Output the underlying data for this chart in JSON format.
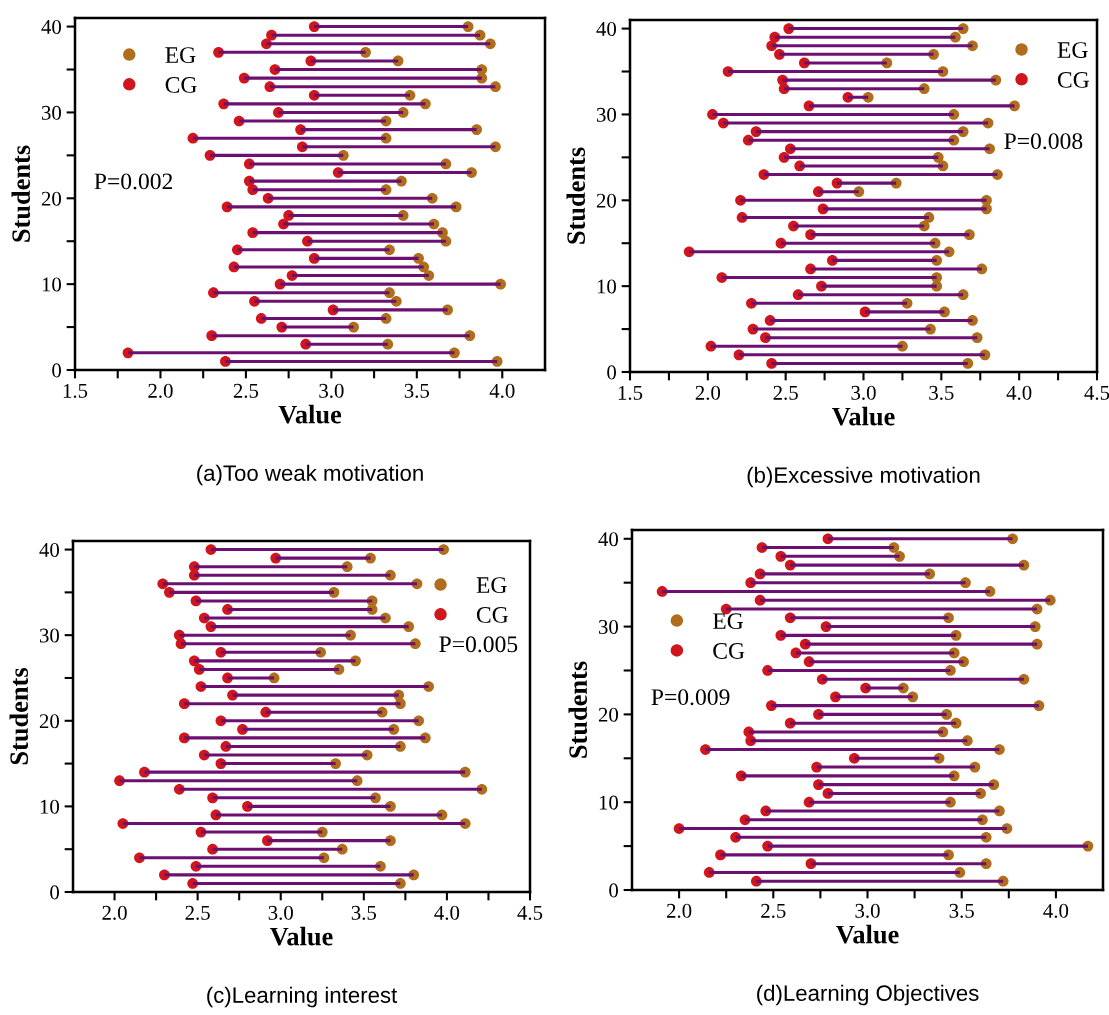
{
  "chart_data": [
    {
      "type": "scatter",
      "xlabel": "Value",
      "ylabel": "Students",
      "xlim": [
        1.5,
        4.25
      ],
      "xticks": [
        1.5,
        {
          "value": 1.75,
          "label": null
        },
        {
          "value": 2,
          "label": "2.0"
        },
        {
          "value": 2.25,
          "label": null
        },
        2.5,
        {
          "value": 2.75,
          "label": null
        },
        {
          "value": 3,
          "label": "3.0"
        },
        {
          "value": 3.25,
          "label": null
        },
        3.5,
        {
          "value": 3.75,
          "label": null
        },
        {
          "value": 4,
          "label": "4.0"
        }
      ],
      "ylim": [
        0,
        41
      ],
      "yticks": [
        0,
        {
          "value": 5,
          "label": null
        },
        10,
        {
          "value": 15,
          "label": null
        },
        20,
        {
          "value": 25,
          "label": null
        },
        30,
        {
          "value": 35,
          "label": null
        },
        40
      ],
      "legend": "top left",
      "marker": "circle",
      "grid": false,
      "annotations": [
        "P=0.002",
        "(a)Too weak motivation"
      ],
      "series": [
        {
          "name": "EG",
          "color": "#b06d1c",
          "x": [
            3.97,
            3.72,
            3.33,
            3.81,
            3.13,
            3.32,
            3.68,
            3.38,
            3.34,
            3.99,
            3.57,
            3.54,
            3.51,
            3.34,
            3.67,
            3.65,
            3.6,
            3.42,
            3.73,
            3.59,
            3.32,
            3.41,
            3.82,
            3.67,
            3.07,
            3.96,
            3.32,
            3.85,
            3.32,
            3.42,
            3.55,
            3.46,
            3.96,
            3.88,
            3.88,
            3.39,
            3.2,
            3.93,
            3.87,
            3.8
          ],
          "values": [
            1,
            2,
            3,
            4,
            5,
            6,
            7,
            8,
            9,
            10,
            11,
            12,
            13,
            14,
            15,
            16,
            17,
            18,
            19,
            20,
            21,
            22,
            23,
            24,
            25,
            26,
            27,
            28,
            29,
            30,
            31,
            32,
            33,
            34,
            35,
            36,
            37,
            38,
            39,
            40
          ]
        },
        {
          "name": "CG",
          "color": "#d0161c",
          "x": [
            2.38,
            1.81,
            2.85,
            2.3,
            2.71,
            2.59,
            3.01,
            2.55,
            2.31,
            2.7,
            2.77,
            2.43,
            2.9,
            2.45,
            2.86,
            2.54,
            2.72,
            2.75,
            2.39,
            2.63,
            2.54,
            2.52,
            3.04,
            2.52,
            2.29,
            2.83,
            2.19,
            2.82,
            2.46,
            2.69,
            2.37,
            2.9,
            2.64,
            2.49,
            2.67,
            2.88,
            2.34,
            2.62,
            2.65,
            2.9
          ],
          "values": [
            1,
            2,
            3,
            4,
            5,
            6,
            7,
            8,
            9,
            10,
            11,
            12,
            13,
            14,
            15,
            16,
            17,
            18,
            19,
            20,
            21,
            22,
            23,
            24,
            25,
            26,
            27,
            28,
            29,
            30,
            31,
            32,
            33,
            34,
            35,
            36,
            37,
            38,
            39,
            40
          ],
          "xerrors": [
            [
              2.38,
              3.97
            ],
            [
              1.81,
              3.72
            ],
            [
              2.85,
              3.33
            ],
            [
              2.3,
              3.81
            ],
            [
              2.71,
              3.13
            ],
            [
              2.59,
              3.32
            ],
            [
              3.01,
              3.68
            ],
            [
              2.55,
              3.38
            ],
            [
              2.31,
              3.34
            ],
            [
              2.7,
              3.99
            ],
            [
              2.77,
              3.57
            ],
            [
              2.43,
              3.54
            ],
            [
              2.9,
              3.51
            ],
            [
              2.45,
              3.34
            ],
            [
              2.86,
              3.67
            ],
            [
              2.54,
              3.65
            ],
            [
              2.72,
              3.6
            ],
            [
              2.75,
              3.42
            ],
            [
              2.39,
              3.73
            ],
            [
              2.63,
              3.59
            ],
            [
              2.54,
              3.32
            ],
            [
              2.52,
              3.41
            ],
            [
              3.04,
              3.82
            ],
            [
              2.52,
              3.67
            ],
            [
              2.29,
              3.07
            ],
            [
              2.83,
              3.96
            ],
            [
              2.19,
              3.32
            ],
            [
              2.82,
              3.85
            ],
            [
              2.46,
              3.32
            ],
            [
              2.69,
              3.42
            ],
            [
              2.37,
              3.55
            ],
            [
              2.9,
              3.46
            ],
            [
              2.64,
              3.96
            ],
            [
              2.49,
              3.88
            ],
            [
              2.67,
              3.88
            ],
            [
              2.88,
              3.39
            ],
            [
              2.34,
              3.2
            ],
            [
              2.62,
              3.93
            ],
            [
              2.65,
              3.87
            ],
            [
              2.9,
              3.8
            ]
          ]
        }
      ]
    },
    {
      "type": "scatter",
      "xlabel": "Value",
      "ylabel": "Students",
      "xlim": [
        1.5,
        4.5
      ],
      "xticks": [
        1.5,
        {
          "value": 1.75,
          "label": null
        },
        {
          "value": 2,
          "label": "2.0"
        },
        {
          "value": 2.25,
          "label": null
        },
        2.5,
        {
          "value": 2.75,
          "label": null
        },
        {
          "value": 3,
          "label": "3.0"
        },
        {
          "value": 3.25,
          "label": null
        },
        3.5,
        {
          "value": 3.75,
          "label": null
        },
        {
          "value": 4,
          "label": "4.0"
        },
        {
          "value": 4.25,
          "label": null
        },
        4.5
      ],
      "ylim": [
        0,
        41
      ],
      "yticks": [
        0,
        {
          "value": 5,
          "label": null
        },
        10,
        {
          "value": 15,
          "label": null
        },
        20,
        {
          "value": 25,
          "label": null
        },
        30,
        {
          "value": 35,
          "label": null
        },
        40
      ],
      "legend": "top right",
      "marker": "circle",
      "grid": false,
      "annotations": [
        "P=0.008",
        "(b)Excessive motivation"
      ],
      "series": [
        {
          "name": "EG",
          "color": "#b06d1c",
          "x": [
            3.67,
            3.78,
            3.25,
            3.73,
            3.43,
            3.7,
            3.52,
            3.28,
            3.64,
            3.47,
            3.47,
            3.76,
            3.47,
            3.55,
            3.46,
            3.68,
            3.39,
            3.42,
            3.79,
            3.79,
            2.97,
            3.21,
            3.86,
            3.51,
            3.48,
            3.81,
            3.58,
            3.64,
            3.8,
            3.58,
            3.97,
            3.03,
            3.39,
            3.85,
            3.51,
            3.15,
            3.45,
            3.7,
            3.59,
            3.64
          ],
          "values": [
            1,
            2,
            3,
            4,
            5,
            6,
            7,
            8,
            9,
            10,
            11,
            12,
            13,
            14,
            15,
            16,
            17,
            18,
            19,
            20,
            21,
            22,
            23,
            24,
            25,
            26,
            27,
            28,
            29,
            30,
            31,
            32,
            33,
            34,
            35,
            36,
            37,
            38,
            39,
            40
          ]
        },
        {
          "name": "CG",
          "color": "#d0161c",
          "x": [
            2.41,
            2.2,
            2.02,
            2.37,
            2.29,
            2.4,
            3.01,
            2.28,
            2.58,
            2.73,
            2.09,
            2.66,
            2.8,
            1.88,
            2.47,
            2.66,
            2.55,
            2.22,
            2.74,
            2.21,
            2.71,
            2.83,
            2.36,
            2.59,
            2.49,
            2.53,
            2.26,
            2.31,
            2.1,
            2.03,
            2.65,
            2.9,
            2.49,
            2.48,
            2.13,
            2.62,
            2.46,
            2.41,
            2.43,
            2.52
          ],
          "values": [
            1,
            2,
            3,
            4,
            5,
            6,
            7,
            8,
            9,
            10,
            11,
            12,
            13,
            14,
            15,
            16,
            17,
            18,
            19,
            20,
            21,
            22,
            23,
            24,
            25,
            26,
            27,
            28,
            29,
            30,
            31,
            32,
            33,
            34,
            35,
            36,
            37,
            38,
            39,
            40
          ],
          "xerrors": [
            [
              2.41,
              3.67
            ],
            [
              2.2,
              3.78
            ],
            [
              2.02,
              3.25
            ],
            [
              2.37,
              3.73
            ],
            [
              2.29,
              3.43
            ],
            [
              2.4,
              3.7
            ],
            [
              3.01,
              3.52
            ],
            [
              2.28,
              3.28
            ],
            [
              2.58,
              3.64
            ],
            [
              2.73,
              3.47
            ],
            [
              2.09,
              3.47
            ],
            [
              2.66,
              3.76
            ],
            [
              2.8,
              3.47
            ],
            [
              1.88,
              3.55
            ],
            [
              2.47,
              3.46
            ],
            [
              2.66,
              3.68
            ],
            [
              2.55,
              3.39
            ],
            [
              2.22,
              3.42
            ],
            [
              2.74,
              3.79
            ],
            [
              2.21,
              3.79
            ],
            [
              2.71,
              2.97
            ],
            [
              2.83,
              3.21
            ],
            [
              2.36,
              3.86
            ],
            [
              2.59,
              3.51
            ],
            [
              2.49,
              3.48
            ],
            [
              2.53,
              3.81
            ],
            [
              2.26,
              3.58
            ],
            [
              2.31,
              3.64
            ],
            [
              2.1,
              3.8
            ],
            [
              2.03,
              3.58
            ],
            [
              2.65,
              3.97
            ],
            [
              2.9,
              3.03
            ],
            [
              2.49,
              3.39
            ],
            [
              2.48,
              3.85
            ],
            [
              2.13,
              3.51
            ],
            [
              2.62,
              3.15
            ],
            [
              2.46,
              3.45
            ],
            [
              2.41,
              3.7
            ],
            [
              2.43,
              3.59
            ],
            [
              2.52,
              3.64
            ]
          ]
        }
      ]
    },
    {
      "type": "scatter",
      "xlabel": "Value",
      "ylabel": "Students",
      "xlim": [
        1.75,
        4.5
      ],
      "xticks": [
        {
          "value": 2,
          "label": "2.0"
        },
        {
          "value": 2.25,
          "label": null
        },
        2.5,
        {
          "value": 2.75,
          "label": null
        },
        {
          "value": 3,
          "label": "3.0"
        },
        {
          "value": 3.25,
          "label": null
        },
        3.5,
        {
          "value": 3.75,
          "label": null
        },
        {
          "value": 4,
          "label": "4.0"
        },
        {
          "value": 4.25,
          "label": null
        },
        4.5
      ],
      "ylim": [
        0,
        41
      ],
      "yticks": [
        0,
        {
          "value": 5,
          "label": null
        },
        10,
        {
          "value": 15,
          "label": null
        },
        20,
        {
          "value": 25,
          "label": null
        },
        30,
        {
          "value": 35,
          "label": null
        },
        40
      ],
      "legend": "top right",
      "marker": "circle",
      "grid": false,
      "annotations": [
        "P=0.005",
        "(c)Learning interest"
      ],
      "series": [
        {
          "name": "EG",
          "color": "#b06d1c",
          "x": [
            3.72,
            3.8,
            3.6,
            3.26,
            3.37,
            3.66,
            3.25,
            4.11,
            3.97,
            3.66,
            3.57,
            4.21,
            3.46,
            4.11,
            3.33,
            3.52,
            3.72,
            3.87,
            3.68,
            3.83,
            3.61,
            3.72,
            3.71,
            3.89,
            2.96,
            3.35,
            3.45,
            3.24,
            3.81,
            3.42,
            3.77,
            3.63,
            3.55,
            3.55,
            3.32,
            3.82,
            3.66,
            3.4,
            3.54,
            3.98
          ],
          "values": [
            1,
            2,
            3,
            4,
            5,
            6,
            7,
            8,
            9,
            10,
            11,
            12,
            13,
            14,
            15,
            16,
            17,
            18,
            19,
            20,
            21,
            22,
            23,
            24,
            25,
            26,
            27,
            28,
            29,
            30,
            31,
            32,
            33,
            34,
            35,
            36,
            37,
            38,
            39,
            40
          ]
        },
        {
          "name": "CG",
          "color": "#d0161c",
          "x": [
            2.47,
            2.3,
            2.49,
            2.15,
            2.59,
            2.92,
            2.52,
            2.05,
            2.61,
            2.8,
            2.59,
            2.39,
            2.03,
            2.18,
            2.64,
            2.54,
            2.67,
            2.42,
            2.77,
            2.64,
            2.91,
            2.42,
            2.71,
            2.52,
            2.68,
            2.51,
            2.48,
            2.64,
            2.4,
            2.39,
            2.58,
            2.54,
            2.68,
            2.49,
            2.33,
            2.29,
            2.48,
            2.48,
            2.97,
            2.58
          ],
          "values": [
            1,
            2,
            3,
            4,
            5,
            6,
            7,
            8,
            9,
            10,
            11,
            12,
            13,
            14,
            15,
            16,
            17,
            18,
            19,
            20,
            21,
            22,
            23,
            24,
            25,
            26,
            27,
            28,
            29,
            30,
            31,
            32,
            33,
            34,
            35,
            36,
            37,
            38,
            39,
            40
          ],
          "xerrors": [
            [
              2.47,
              3.72
            ],
            [
              2.3,
              3.8
            ],
            [
              2.49,
              3.6
            ],
            [
              2.15,
              3.26
            ],
            [
              2.59,
              3.37
            ],
            [
              2.92,
              3.66
            ],
            [
              2.52,
              3.25
            ],
            [
              2.05,
              4.11
            ],
            [
              2.61,
              3.97
            ],
            [
              2.8,
              3.66
            ],
            [
              2.59,
              3.57
            ],
            [
              2.39,
              4.21
            ],
            [
              2.03,
              3.46
            ],
            [
              2.18,
              4.11
            ],
            [
              2.64,
              3.33
            ],
            [
              2.54,
              3.52
            ],
            [
              2.67,
              3.72
            ],
            [
              2.42,
              3.87
            ],
            [
              2.77,
              3.68
            ],
            [
              2.64,
              3.83
            ],
            [
              2.91,
              3.61
            ],
            [
              2.42,
              3.72
            ],
            [
              2.71,
              3.71
            ],
            [
              2.52,
              3.89
            ],
            [
              2.68,
              2.96
            ],
            [
              2.51,
              3.35
            ],
            [
              2.48,
              3.45
            ],
            [
              2.64,
              3.24
            ],
            [
              2.4,
              3.81
            ],
            [
              2.39,
              3.42
            ],
            [
              2.58,
              3.77
            ],
            [
              2.54,
              3.63
            ],
            [
              2.68,
              3.55
            ],
            [
              2.49,
              3.55
            ],
            [
              2.33,
              3.32
            ],
            [
              2.29,
              3.82
            ],
            [
              2.48,
              3.66
            ],
            [
              2.48,
              3.4
            ],
            [
              2.97,
              3.54
            ],
            [
              2.58,
              3.98
            ]
          ]
        }
      ]
    },
    {
      "type": "scatter",
      "xlabel": "Value",
      "ylabel": "Students",
      "xlim": [
        1.75,
        4.25
      ],
      "xticks": [
        {
          "value": 2,
          "label": "2.0"
        },
        {
          "value": 2.25,
          "label": null
        },
        2.5,
        {
          "value": 2.75,
          "label": null
        },
        {
          "value": 3,
          "label": "3.0"
        },
        {
          "value": 3.25,
          "label": null
        },
        3.5,
        {
          "value": 3.75,
          "label": null
        },
        {
          "value": 4,
          "label": "4.0"
        }
      ],
      "ylim": [
        0,
        41
      ],
      "yticks": [
        0,
        {
          "value": 5,
          "label": null
        },
        10,
        {
          "value": 15,
          "label": null
        },
        20,
        {
          "value": 25,
          "label": null
        },
        30,
        {
          "value": 35,
          "label": null
        },
        40
      ],
      "legend": "center left",
      "marker": "circle",
      "grid": false,
      "annotations": [
        "P=0.009",
        "(d)Learning Objectives"
      ],
      "series": [
        {
          "name": "EG",
          "color": "#b06d1c",
          "x": [
            3.72,
            3.49,
            3.63,
            3.43,
            4.17,
            3.63,
            3.74,
            3.61,
            3.7,
            3.44,
            3.6,
            3.67,
            3.46,
            3.57,
            3.38,
            3.7,
            3.53,
            3.4,
            3.47,
            3.42,
            3.91,
            3.24,
            3.19,
            3.83,
            3.44,
            3.51,
            3.46,
            3.9,
            3.47,
            3.89,
            3.43,
            3.9,
            3.97,
            3.65,
            3.52,
            3.33,
            3.83,
            3.17,
            3.14,
            3.77
          ],
          "values": [
            1,
            2,
            3,
            4,
            5,
            6,
            7,
            8,
            9,
            10,
            11,
            12,
            13,
            14,
            15,
            16,
            17,
            18,
            19,
            20,
            21,
            22,
            23,
            24,
            25,
            26,
            27,
            28,
            29,
            30,
            31,
            32,
            33,
            34,
            35,
            36,
            37,
            38,
            39,
            40
          ]
        },
        {
          "name": "CG",
          "color": "#d0161c",
          "x": [
            2.41,
            2.16,
            2.7,
            2.22,
            2.47,
            2.3,
            2.0,
            2.35,
            2.46,
            2.69,
            2.79,
            2.74,
            2.33,
            2.73,
            2.93,
            2.14,
            2.38,
            2.37,
            2.59,
            2.74,
            2.49,
            2.83,
            2.99,
            2.76,
            2.47,
            2.69,
            2.62,
            2.67,
            2.54,
            2.78,
            2.59,
            2.25,
            2.43,
            1.91,
            2.38,
            2.43,
            2.59,
            2.54,
            2.44,
            2.79
          ],
          "values": [
            1,
            2,
            3,
            4,
            5,
            6,
            7,
            8,
            9,
            10,
            11,
            12,
            13,
            14,
            15,
            16,
            17,
            18,
            19,
            20,
            21,
            22,
            23,
            24,
            25,
            26,
            27,
            28,
            29,
            30,
            31,
            32,
            33,
            34,
            35,
            36,
            37,
            38,
            39,
            40
          ],
          "xerrors": [
            [
              2.41,
              3.72
            ],
            [
              2.16,
              3.49
            ],
            [
              2.7,
              3.63
            ],
            [
              2.22,
              3.43
            ],
            [
              2.47,
              4.17
            ],
            [
              2.3,
              3.63
            ],
            [
              2.0,
              3.74
            ],
            [
              2.35,
              3.61
            ],
            [
              2.46,
              3.7
            ],
            [
              2.69,
              3.44
            ],
            [
              2.79,
              3.6
            ],
            [
              2.74,
              3.67
            ],
            [
              2.33,
              3.46
            ],
            [
              2.73,
              3.57
            ],
            [
              2.93,
              3.38
            ],
            [
              2.14,
              3.7
            ],
            [
              2.38,
              3.53
            ],
            [
              2.37,
              3.4
            ],
            [
              2.59,
              3.47
            ],
            [
              2.74,
              3.42
            ],
            [
              2.49,
              3.91
            ],
            [
              2.83,
              3.24
            ],
            [
              2.99,
              3.19
            ],
            [
              2.76,
              3.83
            ],
            [
              2.47,
              3.44
            ],
            [
              2.69,
              3.51
            ],
            [
              2.62,
              3.46
            ],
            [
              2.67,
              3.9
            ],
            [
              2.54,
              3.47
            ],
            [
              2.78,
              3.89
            ],
            [
              2.59,
              3.43
            ],
            [
              2.25,
              3.9
            ],
            [
              2.43,
              3.97
            ],
            [
              1.91,
              3.65
            ],
            [
              2.38,
              3.52
            ],
            [
              2.43,
              3.33
            ],
            [
              2.59,
              3.83
            ],
            [
              2.54,
              3.17
            ],
            [
              2.44,
              3.14
            ],
            [
              2.79,
              3.77
            ]
          ]
        }
      ]
    }
  ]
}
